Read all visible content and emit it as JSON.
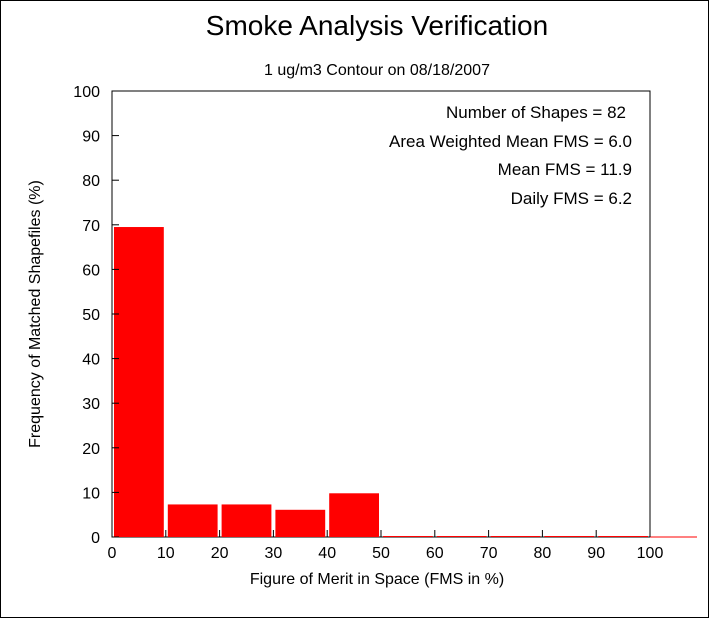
{
  "chart_data": {
    "type": "bar",
    "title": "Smoke Analysis Verification",
    "subtitle": "1 ug/m3 Contour on 08/18/2007",
    "xlabel": "Figure of Merit in Space (FMS in %)",
    "ylabel": "Frequency of Matched Shapefiles (%)",
    "bin_edges": [
      0,
      10,
      20,
      30,
      40,
      50,
      60,
      70,
      80,
      90,
      100
    ],
    "values": [
      69.5,
      7.3,
      7.3,
      6.1,
      9.8,
      0,
      0,
      0,
      0,
      0
    ],
    "xlim": [
      0,
      100
    ],
    "ylim": [
      0,
      100
    ],
    "x_ticks": [
      "0",
      "10",
      "20",
      "30",
      "40",
      "50",
      "60",
      "70",
      "80",
      "90",
      "100"
    ],
    "y_ticks": [
      "0",
      "10",
      "20",
      "30",
      "40",
      "50",
      "60",
      "70",
      "80",
      "90",
      "100"
    ],
    "bar_color": "#ff0000",
    "grid": false,
    "annotations": [
      "Number of Shapes = 82",
      "Area Weighted Mean FMS = 6.0",
      "Mean FMS = 11.9",
      "Daily FMS = 6.2"
    ]
  }
}
